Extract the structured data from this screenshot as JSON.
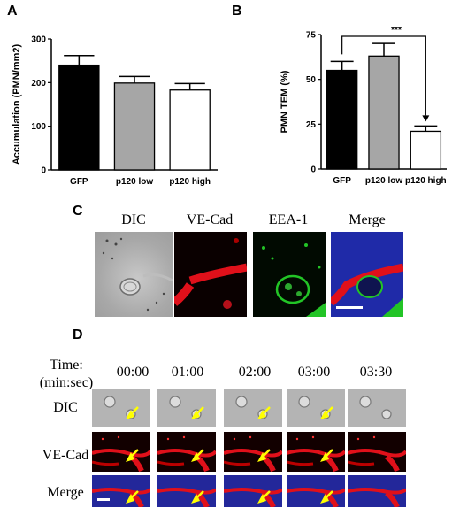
{
  "panels": {
    "a": "A",
    "b": "B",
    "c": "C",
    "d": "D"
  },
  "chart_data": [
    {
      "type": "bar",
      "panel": "A",
      "categories": [
        "GFP",
        "p120 low",
        "p120 high"
      ],
      "values": [
        240,
        199,
        183
      ],
      "errors": [
        22,
        15,
        15
      ],
      "colors": [
        "#000000",
        "#a6a6a6",
        "#ffffff"
      ],
      "ylabel": "Accumulation (PMN/mm2)",
      "ylim": [
        0,
        300
      ],
      "yticks": [
        0,
        100,
        200,
        300
      ],
      "grid": false
    },
    {
      "type": "bar",
      "panel": "B",
      "categories": [
        "GFP",
        "p120 low",
        "p120 high"
      ],
      "values": [
        55,
        63,
        21
      ],
      "errors": [
        5,
        7,
        3
      ],
      "colors": [
        "#000000",
        "#a6a6a6",
        "#ffffff"
      ],
      "ylabel": "PMN TEM (%)",
      "ylim": [
        0,
        75
      ],
      "yticks": [
        0,
        25,
        50,
        75
      ],
      "grid": false,
      "significance": {
        "from": "GFP",
        "to": "p120 high",
        "label": "***"
      }
    }
  ],
  "panel_c": {
    "labels": [
      "DIC",
      "VE-Cad",
      "EEA-1",
      "Merge"
    ]
  },
  "panel_d": {
    "time_label_1": "Time:",
    "time_label_2": "(min:sec)",
    "times": [
      "00:00",
      "01:00",
      "02:00",
      "03:00",
      "03:30"
    ],
    "rows": [
      "DIC",
      "VE-Cad",
      "Merge"
    ]
  },
  "colors": {
    "red_channel": "#e0101a",
    "green_channel": "#22c426",
    "blue_channel": "#1f2aa8",
    "arrow": "#ffff00"
  }
}
